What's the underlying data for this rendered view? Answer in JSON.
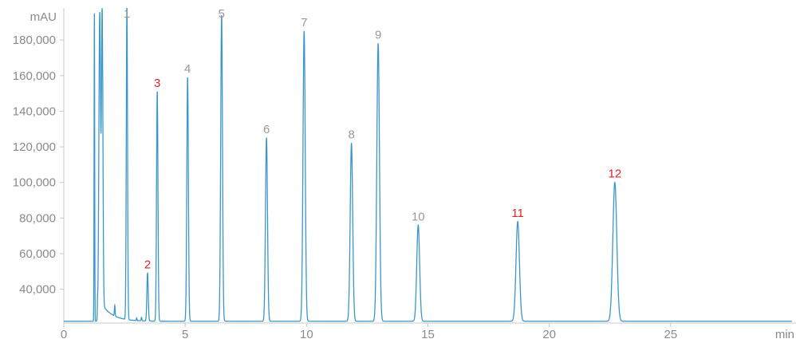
{
  "chart_data": {
    "type": "line",
    "ylabel": "mAU",
    "xlabel": "min",
    "xlim": [
      0,
      30
    ],
    "ylim": [
      21000,
      198000
    ],
    "x_ticks": [
      0,
      5,
      10,
      15,
      20,
      25
    ],
    "y_ticks": [
      40000,
      60000,
      80000,
      100000,
      120000,
      140000,
      160000,
      180000
    ],
    "y_tick_labels": [
      "40,000",
      "60,000",
      "80,000",
      "100,000",
      "120,000",
      "140,000",
      "160,000",
      "180,000"
    ],
    "baseline": 22000,
    "line_color": "#3a97c9",
    "grid": false,
    "series": [
      {
        "peaks": [
          {
            "label": "1",
            "rt": 2.6,
            "height": 199000,
            "label_color": "#999999"
          },
          {
            "label": "2",
            "rt": 3.45,
            "height": 49000,
            "label_color": "#d9262a"
          },
          {
            "label": "3",
            "rt": 3.85,
            "height": 151000,
            "label_color": "#d9262a"
          },
          {
            "label": "4",
            "rt": 5.1,
            "height": 159000,
            "label_color": "#999999"
          },
          {
            "label": "5",
            "rt": 6.5,
            "height": 194000,
            "label_color": "#999999"
          },
          {
            "label": "6",
            "rt": 8.35,
            "height": 125000,
            "label_color": "#999999"
          },
          {
            "label": "7",
            "rt": 9.9,
            "height": 185000,
            "label_color": "#999999"
          },
          {
            "label": "8",
            "rt": 11.85,
            "height": 122000,
            "label_color": "#999999"
          },
          {
            "label": "9",
            "rt": 12.95,
            "height": 178000,
            "label_color": "#999999"
          },
          {
            "label": "10",
            "rt": 14.6,
            "height": 76000,
            "label_color": "#999999"
          },
          {
            "label": "11",
            "rt": 18.7,
            "height": 78000,
            "label_color": "#d9262a"
          },
          {
            "label": "12",
            "rt": 22.7,
            "height": 100000,
            "label_color": "#d9262a"
          }
        ]
      }
    ]
  }
}
